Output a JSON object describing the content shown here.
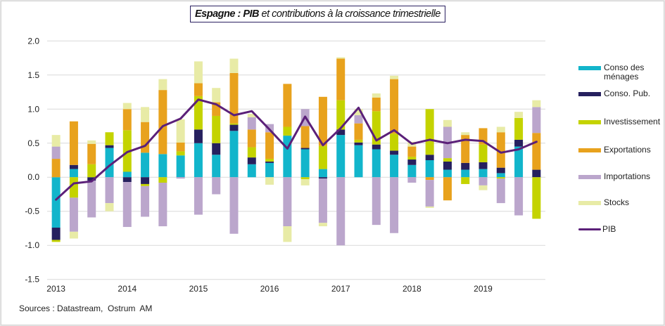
{
  "chart_data": {
    "type": "bar",
    "stacked": true,
    "title_prefix": "Espagne : PIB",
    "title_rest": " et contributions à la croissance trimestrielle",
    "title": "Espagne : PIB et contributions à la croissance trimestrielle",
    "xlabel": "",
    "ylabel": "",
    "ylim": [
      -1.5,
      2.0
    ],
    "yticks": [
      "2.0",
      "1.5",
      "1.0",
      "0.5",
      "0.0",
      "-0.5",
      "-1.0",
      "-1.5"
    ],
    "ytick_values": [
      2.0,
      1.5,
      1.0,
      0.5,
      0.0,
      -0.5,
      -1.0,
      -1.5
    ],
    "grid": true,
    "legend_position": "right",
    "categories": [
      "2013Q1",
      "2013Q2",
      "2013Q3",
      "2013Q4",
      "2014Q1",
      "2014Q2",
      "2014Q3",
      "2014Q4",
      "2015Q1",
      "2015Q2",
      "2015Q3",
      "2015Q4",
      "2016Q1",
      "2016Q2",
      "2016Q3",
      "2016Q4",
      "2017Q1",
      "2017Q2",
      "2017Q3",
      "2017Q4",
      "2018Q1",
      "2018Q2",
      "2018Q3",
      "2018Q4",
      "2019Q1",
      "2019Q2",
      "2019Q3",
      "2019Q4"
    ],
    "xtick_labels": [
      {
        "index": 0,
        "label": "2013"
      },
      {
        "index": 4,
        "label": "2014"
      },
      {
        "index": 8,
        "label": "2015"
      },
      {
        "index": 12,
        "label": "2016"
      },
      {
        "index": 16,
        "label": "2017"
      },
      {
        "index": 20,
        "label": "2018"
      },
      {
        "index": 24,
        "label": "2019"
      }
    ],
    "series": [
      {
        "name": "Conso des ménages",
        "color": "#12b5cb",
        "kind": "bar",
        "values": [
          -0.74,
          0.12,
          0.0,
          0.43,
          0.08,
          0.36,
          0.34,
          0.32,
          0.5,
          0.33,
          0.68,
          0.19,
          0.21,
          0.61,
          0.41,
          0.12,
          0.62,
          0.47,
          0.41,
          0.33,
          0.18,
          0.25,
          0.11,
          0.11,
          0.12,
          0.06,
          0.45,
          0.0
        ]
      },
      {
        "name": "Conso. Pub.",
        "color": "#26205e",
        "kind": "bar",
        "values": [
          -0.18,
          0.06,
          -0.05,
          0.04,
          -0.07,
          -0.1,
          0.0,
          0.0,
          0.2,
          0.17,
          0.09,
          0.1,
          0.02,
          0.0,
          0.02,
          -0.02,
          0.08,
          0.04,
          0.07,
          0.06,
          0.08,
          0.08,
          0.12,
          0.1,
          0.1,
          0.08,
          0.1,
          0.11
        ]
      },
      {
        "name": "Investissement",
        "color": "#c4d300",
        "kind": "bar",
        "values": [
          -0.03,
          -0.3,
          0.19,
          0.19,
          0.61,
          -0.03,
          -0.08,
          0.06,
          0.49,
          0.4,
          0.02,
          0.15,
          0.04,
          0.13,
          -0.03,
          0.34,
          0.43,
          0.04,
          0.49,
          0.25,
          0.04,
          0.67,
          0.05,
          -0.1,
          0.26,
          -0.02,
          0.32,
          -0.61
        ]
      },
      {
        "name": "Exportations",
        "color": "#e8a21d",
        "kind": "bar",
        "values": [
          0.27,
          0.64,
          0.3,
          0.0,
          0.31,
          0.45,
          0.94,
          0.13,
          0.19,
          0.2,
          0.74,
          0.26,
          0.39,
          0.63,
          0.32,
          0.72,
          0.61,
          0.24,
          0.2,
          0.8,
          0.15,
          -0.04,
          -0.34,
          0.41,
          0.24,
          0.52,
          0.0,
          0.54
        ]
      },
      {
        "name": "Importations",
        "color": "#bba6cc",
        "kind": "bar",
        "values": [
          0.18,
          -0.5,
          -0.54,
          -0.38,
          -0.66,
          -0.45,
          -0.64,
          -0.02,
          -0.55,
          -0.25,
          -0.83,
          0.18,
          0.12,
          -0.72,
          0.25,
          -0.65,
          -1.0,
          0.12,
          -0.7,
          -0.82,
          -0.08,
          -0.39,
          0.46,
          0.0,
          -0.12,
          -0.36,
          -0.56,
          0.38
        ]
      },
      {
        "name": "Stocks",
        "color": "#e8eba6",
        "kind": "bar",
        "values": [
          0.17,
          -0.1,
          0.05,
          -0.12,
          0.09,
          0.22,
          0.16,
          0.34,
          0.32,
          0.21,
          0.21,
          0.05,
          -0.11,
          -0.23,
          -0.09,
          -0.05,
          0.02,
          0.09,
          0.06,
          0.05,
          0.07,
          -0.02,
          0.1,
          0.04,
          -0.07,
          0.08,
          0.09,
          0.1
        ]
      },
      {
        "name": "PIB",
        "color": "#5b2079",
        "kind": "line",
        "values": [
          -0.33,
          -0.09,
          -0.06,
          0.17,
          0.37,
          0.46,
          0.75,
          0.86,
          1.14,
          1.07,
          0.91,
          0.97,
          0.7,
          0.42,
          0.89,
          0.47,
          0.72,
          1.02,
          0.54,
          0.69,
          0.49,
          0.55,
          0.5,
          0.55,
          0.53,
          0.36,
          0.41,
          0.52
        ]
      }
    ]
  },
  "legend": {
    "items": [
      {
        "label_line1": "Conso des",
        "label_line2": "ménages"
      },
      {
        "label_line1": "Conso. Pub.",
        "label_line2": ""
      },
      {
        "label_line1": "Investissement",
        "label_line2": ""
      },
      {
        "label_line1": "Exportations",
        "label_line2": ""
      },
      {
        "label_line1": "Importations",
        "label_line2": ""
      },
      {
        "label_line1": "Stocks",
        "label_line2": ""
      },
      {
        "label_line1": "PIB",
        "label_line2": ""
      }
    ]
  },
  "source": "Sources : Datastream,  Ostrum  AM"
}
